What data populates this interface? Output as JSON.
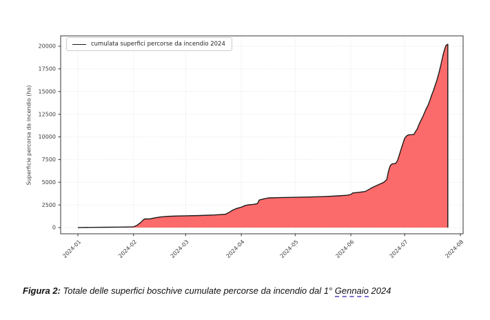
{
  "caption": {
    "label": "Figura 2:",
    "text_before": " Totale delle superfici boschive cumulate percorse da incendio dal 1° ",
    "underlined_word": "Gennaio",
    "text_after": " 2024",
    "underline_color": "#7a6fd0"
  },
  "chart_data": {
    "type": "area",
    "title": "",
    "legend": "cumulata superfici percorse da incendio 2024",
    "legend_position": "upper left",
    "xlabel": "",
    "ylabel": "Superficie percorsa da incendio (ha)",
    "x_unit": "days since 2024-01-01",
    "x_range": [
      0,
      213
    ],
    "ylim": [
      0,
      20000
    ],
    "grid": true,
    "x_tick_labels": [
      "2024-01",
      "2024-02",
      "2024-03",
      "2024-04",
      "2024-05",
      "2024-06",
      "2024-07",
      "2024-08"
    ],
    "x_tick_days": [
      0,
      31,
      60,
      91,
      121,
      152,
      182,
      213
    ],
    "y_tick_labels": [
      "0",
      "2500",
      "5000",
      "7500",
      "10000",
      "12500",
      "15000",
      "17500",
      "20000"
    ],
    "y_tick_values": [
      0,
      2500,
      5000,
      7500,
      10000,
      12500,
      15000,
      17500,
      20000
    ],
    "colors": {
      "area_fill": "#fb6b6b",
      "line": "#1a1a1a",
      "grid": "#d9d9d9",
      "frame": "#333333",
      "tick_text": "#3a3a3a"
    },
    "points": [
      [
        0,
        10
      ],
      [
        8,
        20
      ],
      [
        16,
        35
      ],
      [
        24,
        55
      ],
      [
        31,
        80
      ],
      [
        33,
        260
      ],
      [
        35,
        560
      ],
      [
        36,
        760
      ],
      [
        37,
        950
      ],
      [
        40,
        960
      ],
      [
        43,
        1080
      ],
      [
        46,
        1170
      ],
      [
        50,
        1240
      ],
      [
        55,
        1275
      ],
      [
        60,
        1300
      ],
      [
        68,
        1330
      ],
      [
        76,
        1390
      ],
      [
        82,
        1470
      ],
      [
        84,
        1650
      ],
      [
        86,
        1900
      ],
      [
        88,
        2080
      ],
      [
        91,
        2250
      ],
      [
        93,
        2420
      ],
      [
        95,
        2520
      ],
      [
        98,
        2560
      ],
      [
        100,
        2650
      ],
      [
        101,
        3040
      ],
      [
        103,
        3140
      ],
      [
        106,
        3270
      ],
      [
        112,
        3300
      ],
      [
        121,
        3340
      ],
      [
        130,
        3380
      ],
      [
        138,
        3430
      ],
      [
        145,
        3500
      ],
      [
        150,
        3570
      ],
      [
        152,
        3650
      ],
      [
        153,
        3820
      ],
      [
        157,
        3900
      ],
      [
        160,
        3980
      ],
      [
        162,
        4200
      ],
      [
        164,
        4420
      ],
      [
        166,
        4600
      ],
      [
        168,
        4780
      ],
      [
        170,
        4960
      ],
      [
        171,
        5100
      ],
      [
        172,
        5300
      ],
      [
        173,
        6250
      ],
      [
        174,
        6850
      ],
      [
        175,
        7020
      ],
      [
        177,
        7080
      ],
      [
        178,
        7400
      ],
      [
        179,
        8000
      ],
      [
        180,
        8650
      ],
      [
        181,
        9250
      ],
      [
        182,
        9850
      ],
      [
        183,
        10100
      ],
      [
        184,
        10220
      ],
      [
        187,
        10260
      ],
      [
        189,
        10900
      ],
      [
        190,
        11400
      ],
      [
        192,
        12200
      ],
      [
        194,
        13100
      ],
      [
        195,
        13500
      ],
      [
        196,
        14000
      ],
      [
        197,
        14600
      ],
      [
        198,
        15100
      ],
      [
        199,
        15700
      ],
      [
        200,
        16300
      ],
      [
        201,
        17000
      ],
      [
        202,
        17800
      ],
      [
        203,
        18700
      ],
      [
        204,
        19500
      ],
      [
        205,
        20100
      ],
      [
        206,
        20220
      ]
    ]
  }
}
